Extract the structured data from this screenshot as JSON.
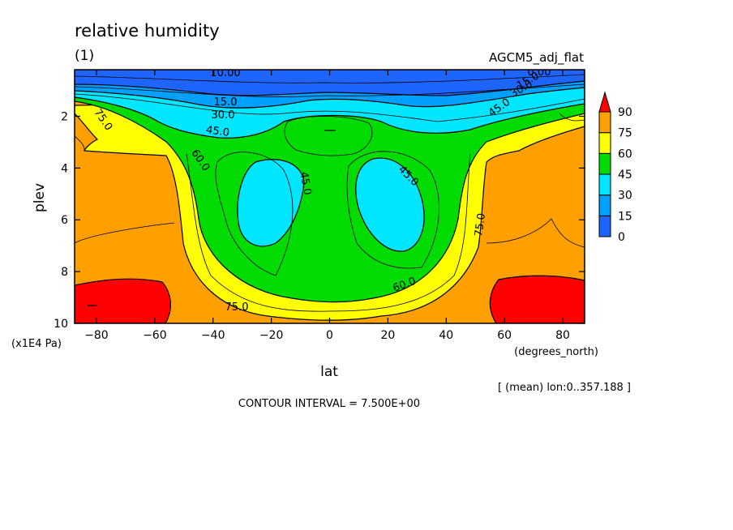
{
  "chart_data": {
    "type": "heatmap",
    "title": "relative humidity",
    "subtitle": "(1)",
    "dataset_label": "AGCM5_adj_flat",
    "xlabel": "lat",
    "xunits": "(degrees_north)",
    "ylabel": "plev",
    "yunits": "(x1E4 Pa)",
    "x_ticks": [
      -80,
      -60,
      -40,
      -20,
      0,
      20,
      40,
      60,
      80
    ],
    "x_tick_labels": [
      "−80",
      "−60",
      "−40",
      "−20",
      "0",
      "20",
      "40",
      "60",
      "80"
    ],
    "y_ticks": [
      2,
      4,
      6,
      8,
      10
    ],
    "y_tick_labels": [
      "2",
      "4",
      "6",
      "8",
      "10"
    ],
    "xlim": [
      -87.5,
      87.5
    ],
    "ylim": [
      10,
      0.2
    ],
    "y_inverted": true,
    "colorbar": {
      "levels": [
        0,
        15,
        30,
        45,
        60,
        75,
        90
      ],
      "labels": [
        "0",
        "15",
        "30",
        "45",
        "60",
        "75",
        "90"
      ],
      "colors": [
        "#1e64ff",
        "#00a0ff",
        "#00e6ff",
        "#00dc00",
        "#ffff00",
        "#ffa000",
        "#ff0000"
      ],
      "extend": "max"
    },
    "contour_labels": [
      "10.00",
      "15.0",
      "30.0",
      "45.0",
      "75.0",
      "60.0",
      "45.0",
      "45.0",
      "75.0",
      "60.0",
      "75.0",
      "0.00",
      "15.0",
      "30.0",
      "45.0"
    ],
    "contour_interval": "CONTOUR INTERVAL = 7.500E+00",
    "mean_note": "[ (mean) lon:0..357.188 ]"
  }
}
